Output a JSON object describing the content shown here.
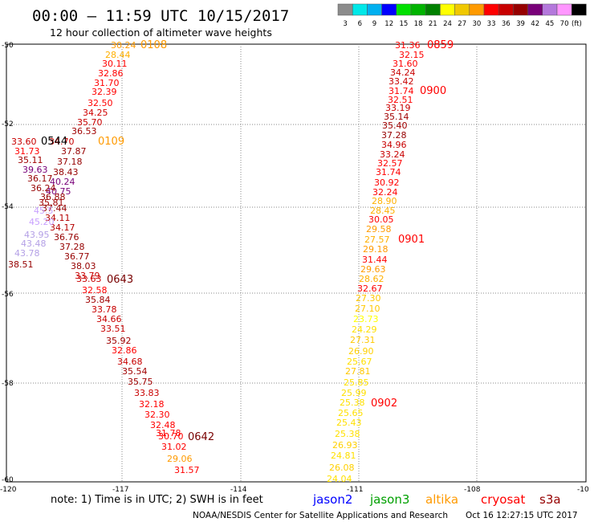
{
  "header": {
    "title": "00:00 – 11:59 UTC 10/15/2017",
    "subtitle": "12 hour collection of altimeter wave heights"
  },
  "legend": {
    "unit": "(ft)",
    "scale": [
      {
        "label": "3",
        "color": "#8c8c8c"
      },
      {
        "label": "6",
        "color": "#00e8e8"
      },
      {
        "label": "9",
        "color": "#00b0f0"
      },
      {
        "label": "12",
        "color": "#0000ff"
      },
      {
        "label": "15",
        "color": "#00e000"
      },
      {
        "label": "18",
        "color": "#00b400"
      },
      {
        "label": "21",
        "color": "#008000"
      },
      {
        "label": "24",
        "color": "#ffff00"
      },
      {
        "label": "27",
        "color": "#f0c800"
      },
      {
        "label": "30",
        "color": "#ff9a00"
      },
      {
        "label": "33",
        "color": "#ff0000"
      },
      {
        "label": "36",
        "color": "#c80000"
      },
      {
        "label": "39",
        "color": "#960000"
      },
      {
        "label": "42",
        "color": "#780078"
      },
      {
        "label": "45",
        "color": "#b478dc"
      },
      {
        "label": "70",
        "color": "#ff96ff"
      },
      {
        "label": "",
        "color": "#000000"
      }
    ]
  },
  "axes": {
    "lon_ticks": [
      "-120",
      "-117",
      "-114",
      "-111",
      "-108",
      "-10"
    ],
    "lat_ticks": [
      "-50",
      "-52",
      "-54",
      "-56",
      "-58",
      "-60"
    ]
  },
  "tracks": {
    "west": [
      {
        "v": "30.24",
        "c": "#ff9a00"
      },
      {
        "v": "28.44",
        "c": "#ffb000"
      },
      {
        "v": "30.11",
        "c": "#ff0000"
      },
      {
        "v": "32.86",
        "c": "#ff0000"
      },
      {
        "v": "31.70",
        "c": "#ff0000"
      },
      {
        "v": "32.39",
        "c": "#ff0000"
      },
      {
        "v": "32.50",
        "c": "#ff0000"
      },
      {
        "v": "34.25",
        "c": "#d00000"
      },
      {
        "v": "35.70",
        "c": "#c80000"
      },
      {
        "v": "36.53",
        "c": "#a00000"
      },
      {
        "v": "34.70",
        "c": "#c80000"
      },
      {
        "v": "37.87",
        "c": "#960000"
      },
      {
        "v": "37.18",
        "c": "#960000"
      },
      {
        "v": "38.43",
        "c": "#960000"
      },
      {
        "v": "40.24",
        "c": "#780078"
      },
      {
        "v": "40.75",
        "c": "#780078"
      },
      {
        "v": "36.88",
        "c": "#960000"
      },
      {
        "v": "35.81",
        "c": "#a00000"
      },
      {
        "v": "37.44",
        "c": "#960000"
      },
      {
        "v": "34.11",
        "c": "#b40000"
      },
      {
        "v": "34.17",
        "c": "#b40000"
      },
      {
        "v": "36.76",
        "c": "#960000"
      },
      {
        "v": "37.28",
        "c": "#960000"
      },
      {
        "v": "36.77",
        "c": "#960000"
      },
      {
        "v": "38.03",
        "c": "#960000"
      },
      {
        "v": "33.79",
        "c": "#c80000"
      },
      {
        "v": "33.63",
        "c": "#c80000"
      },
      {
        "v": "32.58",
        "c": "#ff0000"
      },
      {
        "v": "35.84",
        "c": "#a00000"
      },
      {
        "v": "33.78",
        "c": "#c80000"
      },
      {
        "v": "34.66",
        "c": "#c80000"
      },
      {
        "v": "33.51",
        "c": "#c80000"
      },
      {
        "v": "35.92",
        "c": "#a00000"
      },
      {
        "v": "32.86",
        "c": "#ff0000"
      },
      {
        "v": "34.68",
        "c": "#c80000"
      },
      {
        "v": "35.54",
        "c": "#a00000"
      },
      {
        "v": "35.75",
        "c": "#a00000"
      },
      {
        "v": "33.83",
        "c": "#c80000"
      },
      {
        "v": "32.18",
        "c": "#ff0000"
      },
      {
        "v": "32.30",
        "c": "#ff0000"
      },
      {
        "v": "32.48",
        "c": "#ff0000"
      },
      {
        "v": "31.78",
        "c": "#ff0000"
      },
      {
        "v": "30.70",
        "c": "#ff0000"
      },
      {
        "v": "31.02",
        "c": "#ff0000"
      },
      {
        "v": "29.06",
        "c": "#ff9a00"
      },
      {
        "v": "31.57",
        "c": "#ff0000"
      }
    ],
    "west_extra": [
      {
        "v": "33.60",
        "c": "#c80000"
      },
      {
        "v": "31.73",
        "c": "#ff0000"
      },
      {
        "v": "35.11",
        "c": "#a00000"
      },
      {
        "v": "39.63",
        "c": "#780078"
      },
      {
        "v": "36.17",
        "c": "#960000"
      },
      {
        "v": "36.24",
        "c": "#960000"
      },
      {
        "v": "45.5",
        "c": "#c8a0ff"
      },
      {
        "v": "45.20",
        "c": "#c8a0ff"
      },
      {
        "v": "43.95",
        "c": "#b4a0e6"
      },
      {
        "v": "43.48",
        "c": "#b4a0e6"
      },
      {
        "v": "43.78",
        "c": "#b4a0e6"
      },
      {
        "v": "38.51",
        "c": "#960000"
      }
    ],
    "east": [
      {
        "v": "31.36",
        "c": "#ff0000"
      },
      {
        "v": "32.15",
        "c": "#ff0000"
      },
      {
        "v": "31.60",
        "c": "#ff0000"
      },
      {
        "v": "34.24",
        "c": "#c80000"
      },
      {
        "v": "33.42",
        "c": "#c80000"
      },
      {
        "v": "31.74",
        "c": "#ff0000"
      },
      {
        "v": "32.51",
        "c": "#ff0000"
      },
      {
        "v": "33.19",
        "c": "#c80000"
      },
      {
        "v": "35.14",
        "c": "#a00000"
      },
      {
        "v": "35.40",
        "c": "#a00000"
      },
      {
        "v": "37.28",
        "c": "#960000"
      },
      {
        "v": "34.96",
        "c": "#c80000"
      },
      {
        "v": "33.24",
        "c": "#c80000"
      },
      {
        "v": "32.57",
        "c": "#ff0000"
      },
      {
        "v": "31.74",
        "c": "#ff0000"
      },
      {
        "v": "30.92",
        "c": "#ff0000"
      },
      {
        "v": "32.24",
        "c": "#ff0000"
      },
      {
        "v": "28.90",
        "c": "#ffb000"
      },
      {
        "v": "28.45",
        "c": "#ffb000"
      },
      {
        "v": "30.05",
        "c": "#ff0000"
      },
      {
        "v": "29.58",
        "c": "#ff9a00"
      },
      {
        "v": "27.57",
        "c": "#ffb000"
      },
      {
        "v": "29.18",
        "c": "#ff9a00"
      },
      {
        "v": "31.44",
        "c": "#ff0000"
      },
      {
        "v": "29.63",
        "c": "#ff9a00"
      },
      {
        "v": "28.62",
        "c": "#ffb000"
      },
      {
        "v": "32.67",
        "c": "#ff0000"
      },
      {
        "v": "27.30",
        "c": "#ffc800"
      },
      {
        "v": "27.10",
        "c": "#ffc800"
      },
      {
        "v": "23.73",
        "c": "#ffff00"
      },
      {
        "v": "24.29",
        "c": "#ffe000"
      },
      {
        "v": "27.31",
        "c": "#ffc800"
      },
      {
        "v": "26.90",
        "c": "#ffd000"
      },
      {
        "v": "25.67",
        "c": "#ffe000"
      },
      {
        "v": "27.81",
        "c": "#ffc800"
      },
      {
        "v": "25.85",
        "c": "#ffe000"
      },
      {
        "v": "25.99",
        "c": "#ffe000"
      },
      {
        "v": "25.38",
        "c": "#ffe000"
      },
      {
        "v": "25.65",
        "c": "#ffe000"
      },
      {
        "v": "25.43",
        "c": "#ffe000"
      },
      {
        "v": "25.38",
        "c": "#ffe000"
      },
      {
        "v": "26.93",
        "c": "#ffd000"
      },
      {
        "v": "24.81",
        "c": "#ffe000"
      },
      {
        "v": "26.08",
        "c": "#ffd000"
      },
      {
        "v": "24.04",
        "c": "#ffe000"
      }
    ],
    "time_tags": [
      {
        "v": "0108",
        "c": "#ff9a00"
      },
      {
        "v": "0544",
        "c": "#000000"
      },
      {
        "v": "0109",
        "c": "#ff9a00"
      },
      {
        "v": "0643",
        "c": "#780000"
      },
      {
        "v": "0642",
        "c": "#780000"
      },
      {
        "v": "0859",
        "c": "#ff0000"
      },
      {
        "v": "0900",
        "c": "#ff0000"
      },
      {
        "v": "0901",
        "c": "#ff0000"
      },
      {
        "v": "0902",
        "c": "#ff0000"
      }
    ]
  },
  "footer": {
    "note": "note: 1) Time is in UTC; 2) SWH is in feet",
    "satellites": [
      {
        "name": "jason2",
        "color": "#0000ff"
      },
      {
        "name": "jason3",
        "color": "#00a000"
      },
      {
        "name": "altika",
        "color": "#ff9a00"
      },
      {
        "name": "cryosat",
        "color": "#ff0000"
      },
      {
        "name": "s3a",
        "color": "#960000"
      }
    ],
    "credit": "NOAA/NESDIS Center for Satellite Applications and Research",
    "timestamp": "Oct 16 12:27:15 UTC 2017"
  }
}
